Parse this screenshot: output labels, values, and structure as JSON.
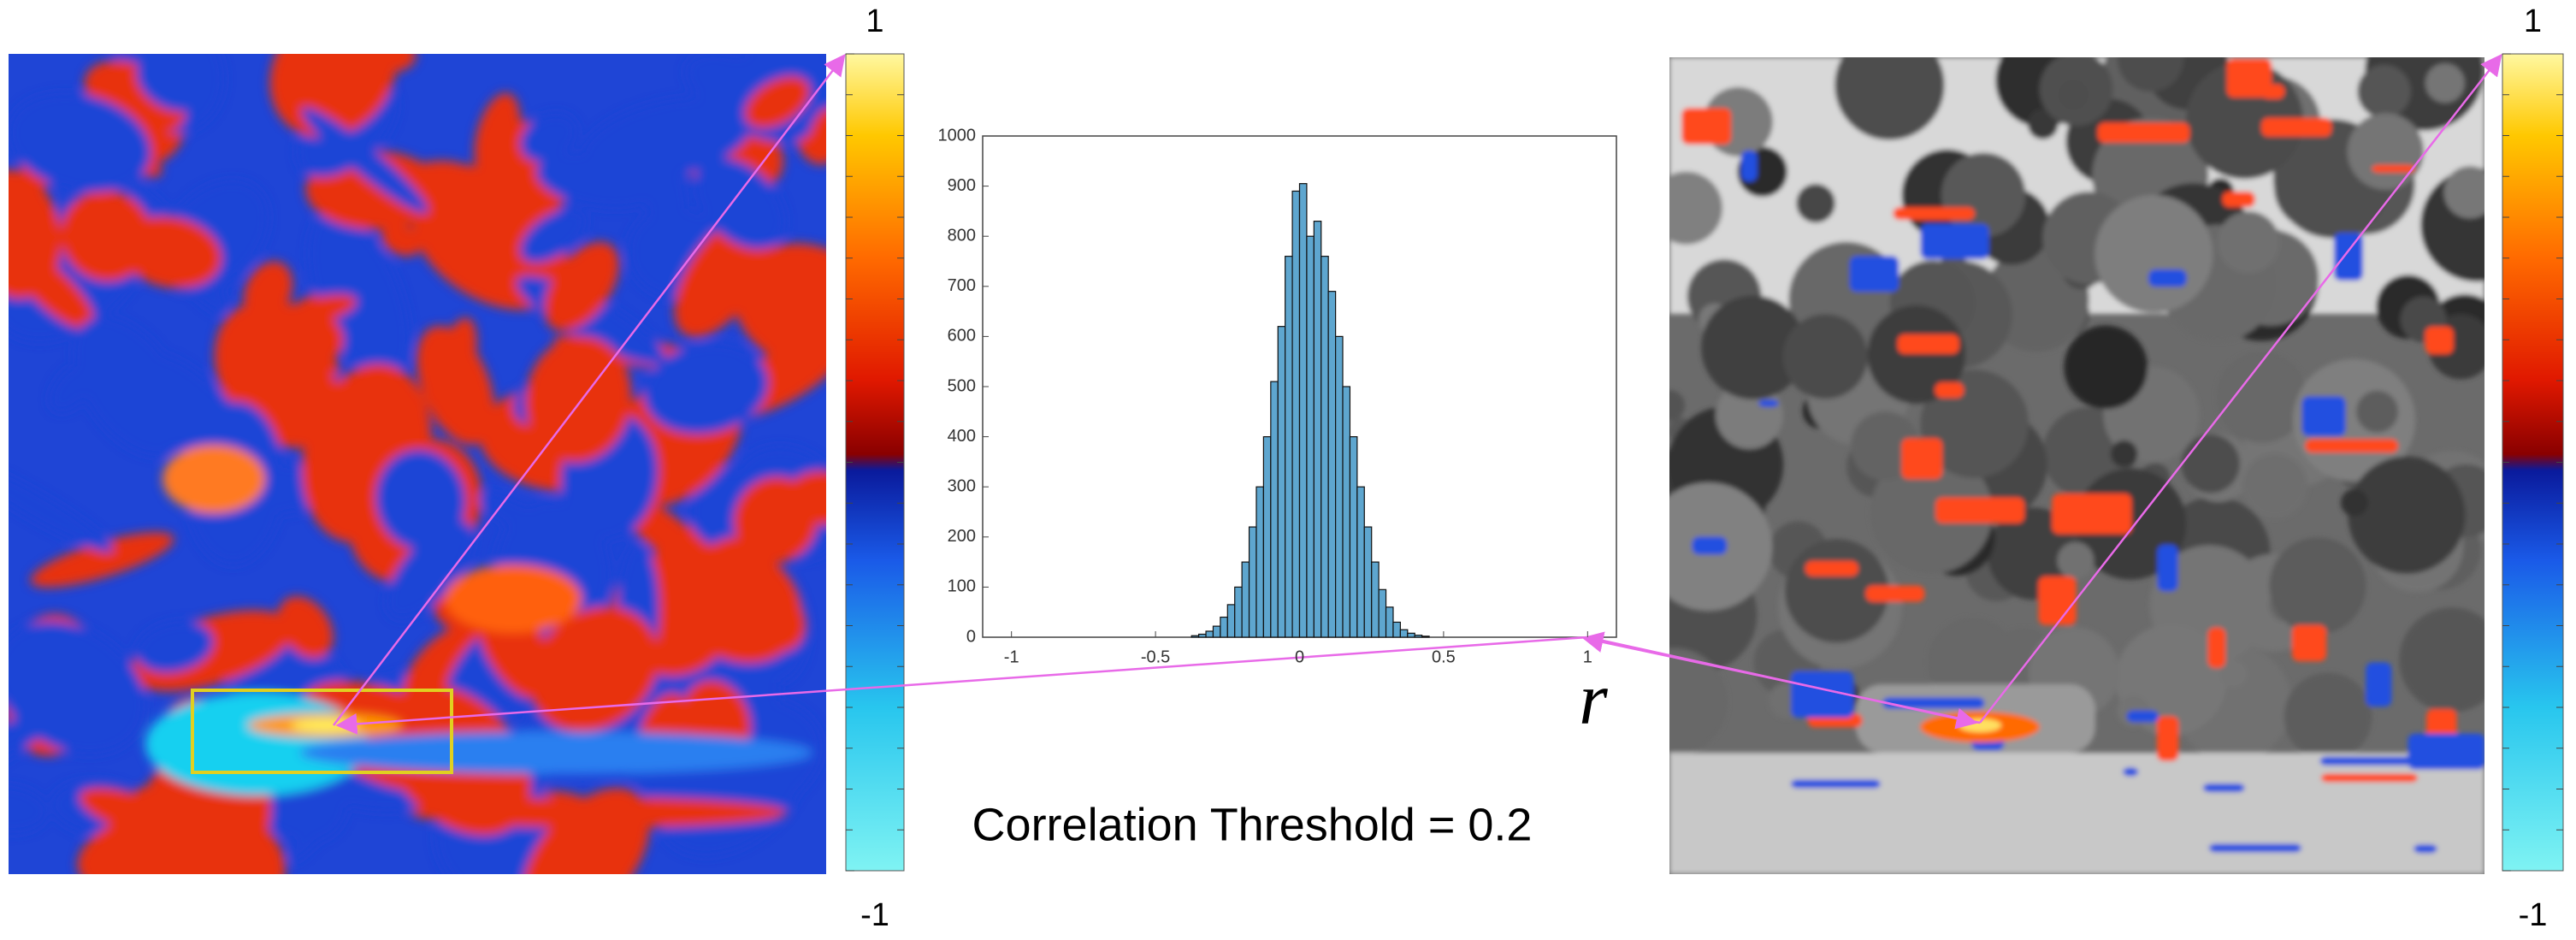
{
  "chart_data": {
    "type": "histogram",
    "bins": [
      -0.375,
      -0.35,
      -0.325,
      -0.3,
      -0.275,
      -0.25,
      -0.225,
      -0.2,
      -0.175,
      -0.15,
      -0.125,
      -0.1,
      -0.075,
      -0.05,
      -0.025,
      0,
      0.025,
      0.05,
      0.075,
      0.1,
      0.125,
      0.15,
      0.175,
      0.2,
      0.225,
      0.25,
      0.275,
      0.3,
      0.325,
      0.35,
      0.375,
      0.4,
      0.425,
      0.45
    ],
    "counts": [
      3,
      6,
      12,
      22,
      40,
      65,
      100,
      150,
      220,
      300,
      400,
      510,
      620,
      760,
      890,
      905,
      800,
      830,
      760,
      690,
      600,
      500,
      400,
      300,
      220,
      150,
      95,
      60,
      30,
      15,
      8,
      4,
      2
    ],
    "color": "#5ea6cf",
    "xlim": [
      -1.1,
      1.1
    ],
    "xticks": [
      -1,
      -0.5,
      0,
      0.5,
      1
    ],
    "ylim": [
      0,
      1000
    ],
    "yticks": [
      0,
      100,
      200,
      300,
      400,
      500,
      600,
      700,
      800,
      900,
      1000
    ],
    "x_label": "r",
    "annotation": "Correlation Threshold = 0.2"
  },
  "colorbars": [
    {
      "ylim": [
        -1,
        1
      ],
      "yticks": [
        -1,
        1
      ]
    },
    {
      "ylim": [
        -1,
        1
      ],
      "yticks": [
        -1,
        1
      ]
    }
  ]
}
